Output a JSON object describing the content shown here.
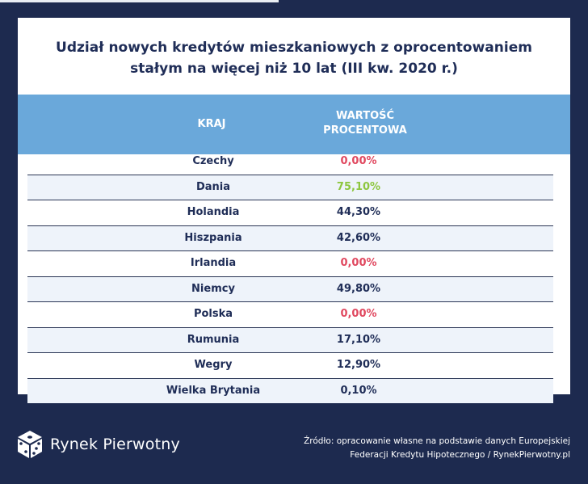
{
  "title": {
    "line1": "Udział nowych kredytów mieszkaniowych z oprocentowaniem",
    "line2": "stałym na więcej niż 10 lat (III kw. 2020 r.)"
  },
  "table": {
    "headers": [
      "KRAJ",
      "WARTOŚĆ\nPROCENTOWA"
    ],
    "rows": [
      {
        "country": "Czechy",
        "value": "0,00%",
        "color": "#e0485f"
      },
      {
        "country": "Dania",
        "value": "75,10%",
        "color": "#8dc63f"
      },
      {
        "country": "Holandia",
        "value": "44,30%",
        "color": "#1f2d57"
      },
      {
        "country": "Hiszpania",
        "value": "42,60%",
        "color": "#1f2d57"
      },
      {
        "country": "Irlandia",
        "value": "0,00%",
        "color": "#e0485f"
      },
      {
        "country": "Niemcy",
        "value": "49,80%",
        "color": "#1f2d57"
      },
      {
        "country": "Polska",
        "value": "0,00%",
        "color": "#e0485f"
      },
      {
        "country": "Rumunia",
        "value": "17,10%",
        "color": "#1f2d57"
      },
      {
        "country": "Wegry",
        "value": "12,90%",
        "color": "#1f2d57"
      },
      {
        "country": "Wielka Brytania",
        "value": "0,10%",
        "color": "#1f2d57"
      }
    ]
  },
  "footer": {
    "logo_icon": "dice-cube-icon",
    "logo_text": "Rynek Pierwotny",
    "source_line1": "Źródło: opracowanie własne na podstawie danych Europejskiej",
    "source_line2": "Federacji Kredytu Hipotecznego / RynekPierwotny.pl"
  },
  "colors": {
    "background": "#1d2a4f",
    "header": "#6aa8da",
    "text": "#1f2d57",
    "negative": "#e0485f",
    "positive": "#8dc63f"
  }
}
